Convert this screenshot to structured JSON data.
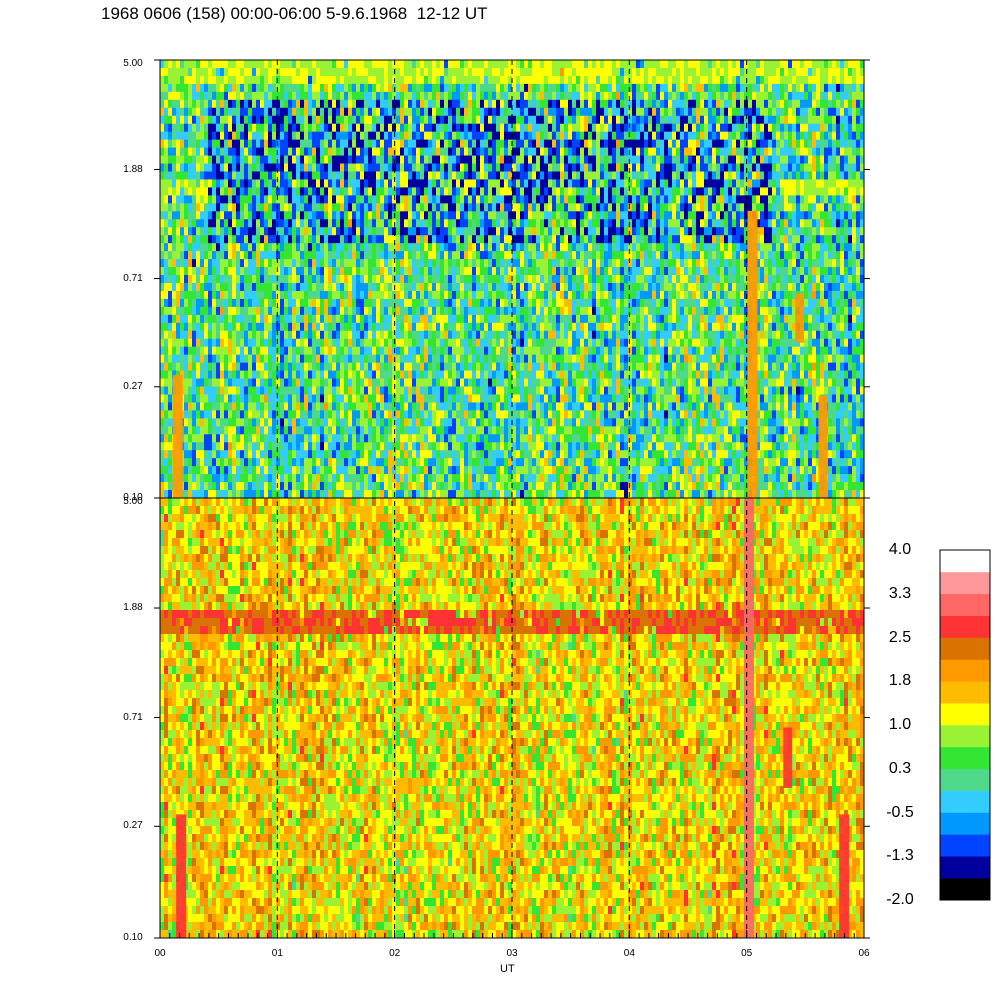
{
  "chart_data": {
    "type": "heatmap",
    "title": "1968 0606 (158) 00:00-06:00 5-9.6.1968  12-12 UT",
    "xlabel": "UT",
    "x_ticks": [
      "00",
      "01",
      "02",
      "03",
      "04",
      "05",
      "06"
    ],
    "x_range_hours": [
      0,
      6
    ],
    "y_scale": "log",
    "panels": [
      {
        "y_ticks": [
          "5.00",
          "1.88",
          "0.71",
          "0.27",
          "0.10"
        ],
        "y_range": [
          0.1,
          5.0
        ],
        "dominant_levels": [
          -0.5,
          0.3,
          1.0
        ],
        "features": [
          {
            "kind": "band",
            "y_center": 1.6,
            "level": 1.0,
            "x_ranges": [
              [
                0.0,
                0.45
              ],
              [
                2.45,
                3.0
              ],
              [
                5.3,
                6.0
              ]
            ]
          },
          {
            "kind": "band",
            "y_center": 4.5,
            "level": 1.0,
            "x_ranges": [
              [
                0.0,
                6.0
              ]
            ]
          },
          {
            "kind": "low_band",
            "y_range": [
              1.0,
              3.5
            ],
            "level": -1.3,
            "x_ranges": [
              [
                0.4,
                5.2
              ]
            ]
          },
          {
            "kind": "column",
            "x": 0.15,
            "y_range": [
              0.1,
              0.3
            ],
            "level": 1.8
          },
          {
            "kind": "column",
            "x": 5.05,
            "y_range": [
              0.1,
              1.3
            ],
            "level": 1.8
          },
          {
            "kind": "patch",
            "x": 5.45,
            "y_range": [
              0.4,
              0.62
            ],
            "level": 1.8
          },
          {
            "kind": "patch",
            "x": 5.65,
            "y_range": [
              0.1,
              0.25
            ],
            "level": 1.8
          }
        ]
      },
      {
        "y_ticks": [
          "5.00",
          "1.88",
          "0.71",
          "0.27",
          "0.10"
        ],
        "y_range": [
          0.1,
          5.0
        ],
        "dominant_levels": [
          1.0,
          1.8
        ],
        "features": [
          {
            "kind": "band",
            "y_center": 1.65,
            "level": 2.5,
            "x_ranges": [
              [
                0.0,
                6.0
              ]
            ]
          },
          {
            "kind": "column",
            "x": 0.18,
            "y_range": [
              0.1,
              0.3
            ],
            "level": 2.8
          },
          {
            "kind": "column",
            "x": 5.02,
            "y_range": [
              0.1,
              5.0
            ],
            "level": 3.0
          },
          {
            "kind": "patch",
            "x": 5.35,
            "y_range": [
              0.38,
              0.65
            ],
            "level": 2.8
          },
          {
            "kind": "column",
            "x": 5.83,
            "y_range": [
              0.1,
              0.3
            ],
            "level": 2.8
          }
        ]
      }
    ],
    "colorbar": {
      "labels": [
        "4.0",
        "3.3",
        "2.5",
        "1.8",
        "1.0",
        "0.3",
        "-0.5",
        "-1.3",
        "-2.0"
      ],
      "colors": [
        "#000000",
        "#00009e",
        "#0044ff",
        "#0099ff",
        "#33ccff",
        "#4dd88a",
        "#33e633",
        "#99f233",
        "#ffff00",
        "#ffbb00",
        "#ff9900",
        "#d97300",
        "#ff3333",
        "#ff6666",
        "#ff9999",
        "#ffffff"
      ]
    },
    "vertical_dashed_lines_at_hours": [
      1,
      2,
      3,
      4,
      5
    ]
  }
}
